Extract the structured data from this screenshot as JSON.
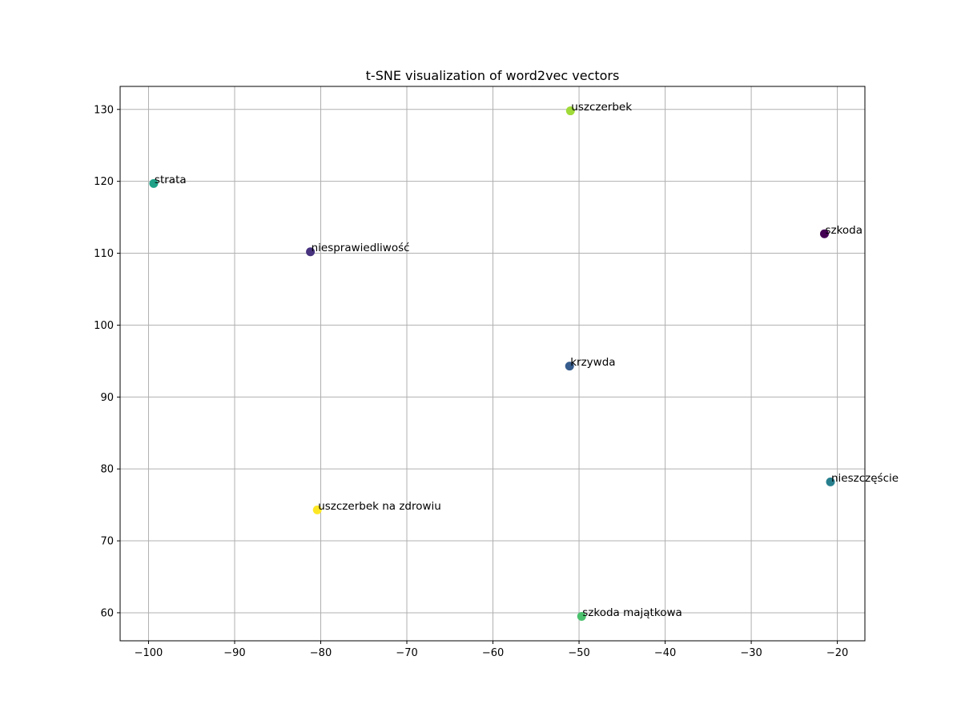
{
  "chart_data": {
    "type": "scatter",
    "title": "t-SNE visualization of word2vec vectors",
    "xlabel": "",
    "ylabel": "",
    "xlim": [
      -103.3,
      -16.8
    ],
    "ylim": [
      56.1,
      133.2
    ],
    "xticks": [
      -100,
      -90,
      -80,
      -70,
      -60,
      -50,
      -40,
      -30,
      -20
    ],
    "yticks": [
      60,
      70,
      80,
      90,
      100,
      110,
      120,
      130
    ],
    "xtick_labels": [
      "−100",
      "−90",
      "−80",
      "−70",
      "−60",
      "−50",
      "−40",
      "−30",
      "−20"
    ],
    "ytick_labels": [
      "60",
      "70",
      "80",
      "90",
      "100",
      "110",
      "120",
      "130"
    ],
    "grid": true,
    "points": [
      {
        "label": "szkoda",
        "x": -21.5,
        "y": 112.7,
        "color": "#440154"
      },
      {
        "label": "niesprawiedliwość",
        "x": -81.2,
        "y": 110.2,
        "color": "#46327e"
      },
      {
        "label": "krzywda",
        "x": -51.1,
        "y": 94.3,
        "color": "#365c8d"
      },
      {
        "label": "nieszczęście",
        "x": -20.8,
        "y": 78.2,
        "color": "#277f8e"
      },
      {
        "label": "strata",
        "x": -99.4,
        "y": 119.7,
        "color": "#1fa187"
      },
      {
        "label": "szkoda majątkowa",
        "x": -49.7,
        "y": 59.5,
        "color": "#4ac16d"
      },
      {
        "label": "uszczerbek",
        "x": -51.0,
        "y": 129.8,
        "color": "#a0da39"
      },
      {
        "label": "uszczerbek na zdrowiu",
        "x": -80.4,
        "y": 74.3,
        "color": "#fde725"
      }
    ]
  },
  "colors": {
    "grid": "#b0b0b0",
    "axes": "#000000",
    "background": "#ffffff"
  }
}
